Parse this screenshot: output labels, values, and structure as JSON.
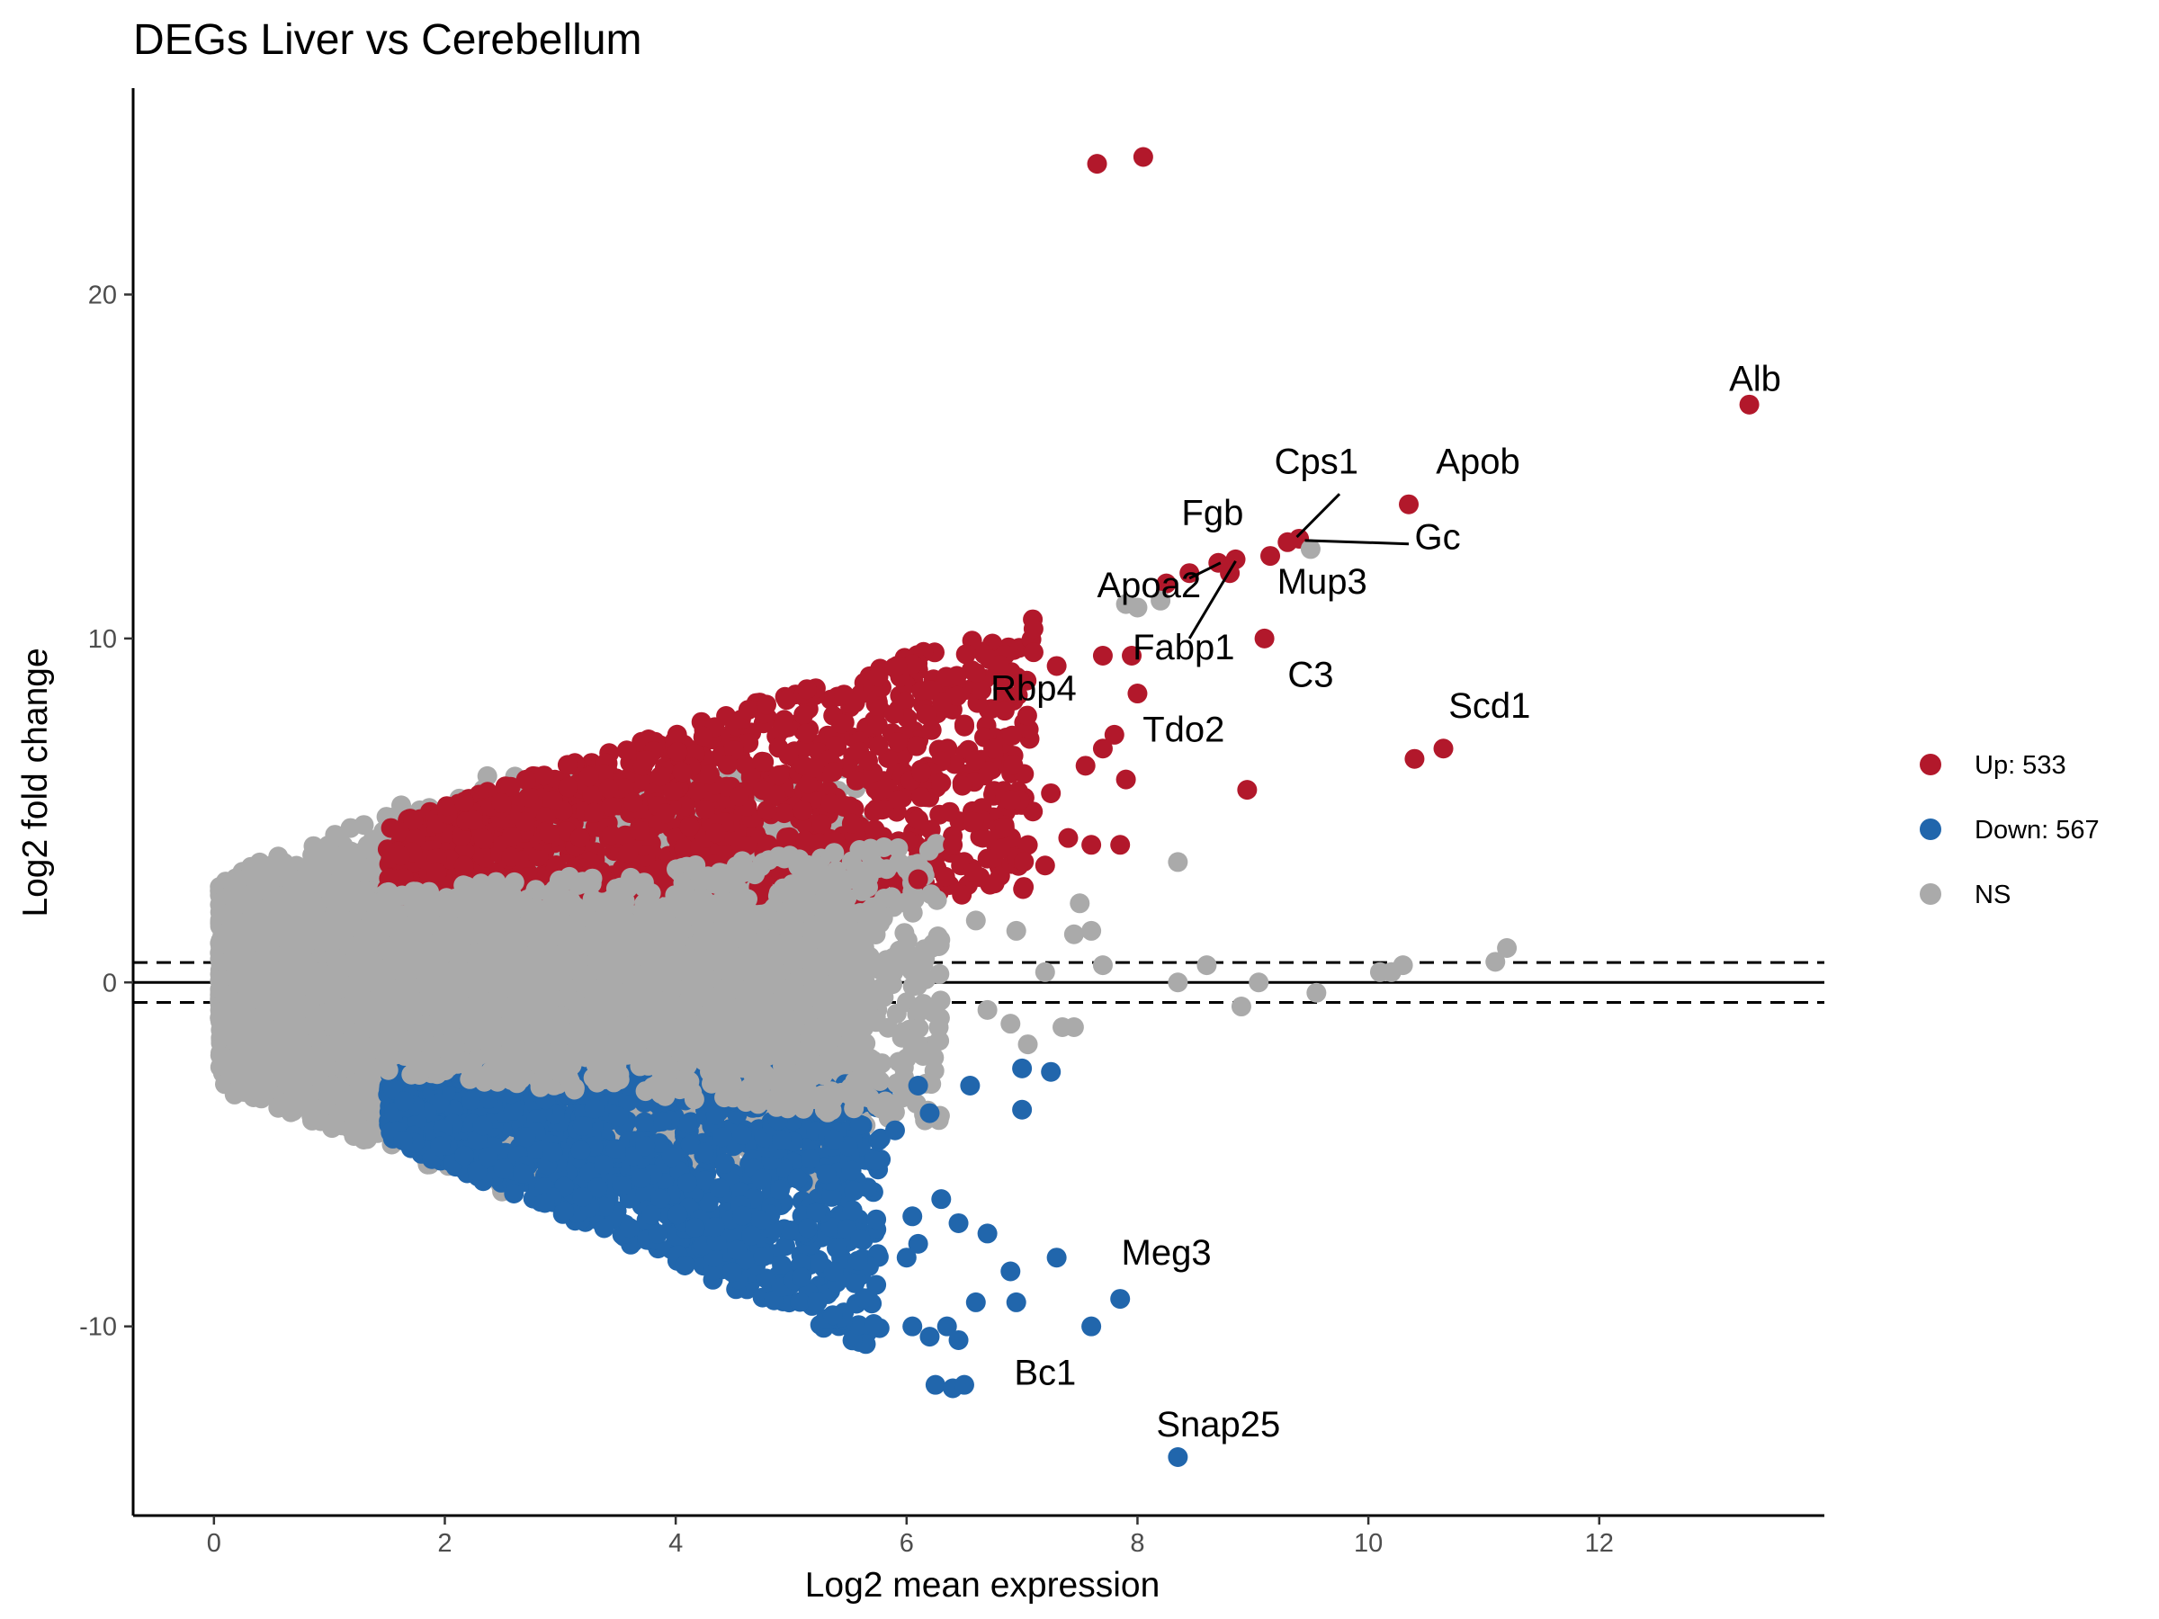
{
  "chart_data": {
    "type": "scatter",
    "title": "DEGs Liver vs Cerebellum",
    "xlabel": "Log2 mean expression",
    "ylabel": "Log2 fold change",
    "xlim": [
      -0.7,
      13.95
    ],
    "ylim": [
      -15.5,
      26
    ],
    "xticks": [
      0,
      2,
      4,
      6,
      8,
      10,
      12
    ],
    "yticks": [
      -10,
      0,
      10,
      20
    ],
    "hlines": {
      "solid": 0,
      "dashed": [
        0.58,
        -0.58
      ]
    },
    "legend_position": "right",
    "series": [
      {
        "name": "Up: 533",
        "color": "#B2182B",
        "points": [
          [
            7.65,
            23.8
          ],
          [
            8.05,
            24.0
          ],
          [
            13.3,
            16.8
          ],
          [
            10.35,
            13.9
          ],
          [
            9.4,
            12.9
          ],
          [
            9.3,
            12.8
          ],
          [
            9.15,
            12.4
          ],
          [
            8.7,
            12.2
          ],
          [
            8.85,
            12.3
          ],
          [
            8.8,
            11.9
          ],
          [
            8.45,
            11.9
          ],
          [
            8.25,
            11.6
          ],
          [
            9.1,
            10.0
          ],
          [
            8.0,
            8.4
          ],
          [
            7.8,
            7.2
          ],
          [
            7.7,
            6.8
          ],
          [
            7.9,
            5.9
          ],
          [
            8.95,
            5.6
          ],
          [
            10.4,
            6.5
          ],
          [
            10.65,
            6.8
          ],
          [
            6.85,
            7.9
          ],
          [
            7.7,
            9.5
          ],
          [
            7.95,
            9.5
          ],
          [
            7.3,
            9.2
          ],
          [
            7.1,
            9.6
          ],
          [
            6.65,
            8.5
          ],
          [
            6.6,
            9.0
          ],
          [
            7.6,
            4.0
          ],
          [
            7.85,
            4.0
          ],
          [
            7.4,
            4.2
          ],
          [
            7.55,
            6.3
          ],
          [
            7.25,
            5.5
          ],
          [
            6.9,
            5.3
          ],
          [
            7.2,
            3.4
          ],
          [
            6.75,
            6.8
          ],
          [
            6.3,
            5.8
          ],
          [
            6.5,
            7.5
          ],
          [
            6.2,
            8.5
          ],
          [
            6.4,
            4.0
          ],
          [
            6.7,
            3.6
          ],
          [
            6.1,
            3.0
          ],
          [
            6.85,
            4.5
          ]
        ]
      },
      {
        "name": "Down: 567",
        "color": "#2166AC",
        "points": [
          [
            8.35,
            -13.8
          ],
          [
            7.85,
            -9.2
          ],
          [
            7.6,
            -10.0
          ],
          [
            6.25,
            -11.7
          ],
          [
            6.4,
            -11.8
          ],
          [
            6.5,
            -11.7
          ],
          [
            6.05,
            -10.0
          ],
          [
            6.2,
            -10.3
          ],
          [
            6.35,
            -10.0
          ],
          [
            6.45,
            -10.4
          ],
          [
            6.6,
            -9.3
          ],
          [
            6.95,
            -9.3
          ],
          [
            7.3,
            -8.0
          ],
          [
            6.0,
            -8.0
          ],
          [
            6.3,
            -6.3
          ],
          [
            6.05,
            -6.8
          ],
          [
            6.45,
            -7.0
          ],
          [
            6.7,
            -7.3
          ],
          [
            6.1,
            -7.6
          ],
          [
            6.9,
            -8.4
          ],
          [
            6.55,
            -3.0
          ],
          [
            7.0,
            -2.5
          ],
          [
            7.25,
            -2.6
          ],
          [
            7.0,
            -3.7
          ],
          [
            6.1,
            -3.0
          ],
          [
            6.2,
            -3.8
          ],
          [
            5.9,
            -4.3
          ]
        ]
      },
      {
        "name": "NS",
        "color": "#AAAAAA",
        "points": [
          [
            9.5,
            12.6
          ],
          [
            8.2,
            11.1
          ],
          [
            8.0,
            10.9
          ],
          [
            7.9,
            11.0
          ],
          [
            8.35,
            3.5
          ],
          [
            7.5,
            2.3
          ],
          [
            7.45,
            1.4
          ],
          [
            7.6,
            1.5
          ],
          [
            7.7,
            0.5
          ],
          [
            8.6,
            0.5
          ],
          [
            8.35,
            0.0
          ],
          [
            9.05,
            0.0
          ],
          [
            8.9,
            -0.7
          ],
          [
            9.55,
            -0.3
          ],
          [
            10.1,
            0.3
          ],
          [
            10.2,
            0.3
          ],
          [
            10.3,
            0.5
          ],
          [
            11.1,
            0.6
          ],
          [
            11.2,
            1.0
          ],
          [
            7.2,
            0.3
          ],
          [
            7.35,
            -1.3
          ],
          [
            7.05,
            -1.8
          ],
          [
            7.45,
            -1.3
          ],
          [
            6.7,
            -0.8
          ],
          [
            6.9,
            -1.2
          ],
          [
            6.95,
            1.5
          ],
          [
            6.6,
            1.8
          ]
        ]
      }
    ],
    "annotations": [
      {
        "text": "Alb",
        "x": 13.35,
        "y": 17.2
      },
      {
        "text": "Apob",
        "x": 10.95,
        "y": 14.8
      },
      {
        "text": "Cps1",
        "x": 9.55,
        "y": 14.8
      },
      {
        "text": "Gc",
        "x": 10.6,
        "y": 12.6
      },
      {
        "text": "Fgb",
        "x": 8.65,
        "y": 13.3
      },
      {
        "text": "Mup3",
        "x": 9.6,
        "y": 11.3
      },
      {
        "text": "Apoa2",
        "x": 8.1,
        "y": 11.2
      },
      {
        "text": "Fabp1",
        "x": 8.4,
        "y": 9.4
      },
      {
        "text": "C3",
        "x": 9.5,
        "y": 8.6
      },
      {
        "text": "Rbp4",
        "x": 7.1,
        "y": 8.2
      },
      {
        "text": "Tdo2",
        "x": 8.4,
        "y": 7.0
      },
      {
        "text": "Scd1",
        "x": 11.05,
        "y": 7.7
      },
      {
        "text": "Meg3",
        "x": 8.25,
        "y": -8.2
      },
      {
        "text": "Bc1",
        "x": 7.2,
        "y": -11.7
      },
      {
        "text": "Snap25",
        "x": 8.7,
        "y": -13.2
      }
    ],
    "label_connectors": [
      [
        [
          9.38,
          12.95
        ],
        [
          9.75,
          14.2
        ]
      ],
      [
        [
          9.45,
          12.85
        ],
        [
          10.35,
          12.75
        ]
      ],
      [
        [
          8.72,
          12.2
        ],
        [
          8.45,
          11.75
        ]
      ],
      [
        [
          8.85,
          12.25
        ],
        [
          8.45,
          10.0
        ]
      ]
    ]
  }
}
